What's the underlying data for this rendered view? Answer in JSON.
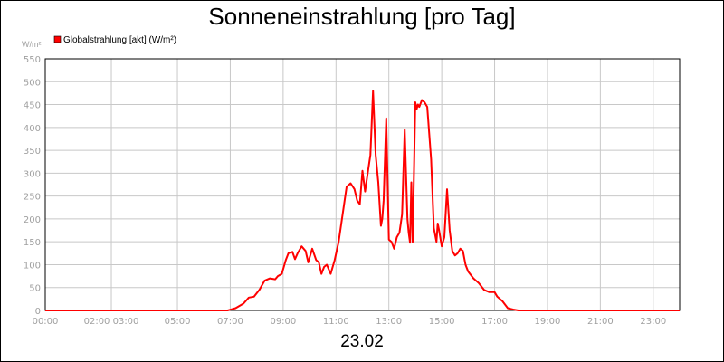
{
  "chart_data": {
    "type": "line",
    "title": "Sonneneinstrahlung [pro Tag]",
    "ylabel": "W/m²",
    "xlabel": "",
    "date_label": "23.02",
    "ylim": [
      0,
      550
    ],
    "yticks": [
      0,
      50,
      100,
      150,
      200,
      250,
      300,
      350,
      400,
      450,
      500,
      550
    ],
    "xlim_hours": [
      0,
      24
    ],
    "xticks": [
      {
        "hour": 0,
        "label": "00:00"
      },
      {
        "hour": 2.5,
        "label": "02:00 03:00"
      },
      {
        "hour": 5,
        "label": "05:00"
      },
      {
        "hour": 7,
        "label": "07:00"
      },
      {
        "hour": 9,
        "label": "09:00"
      },
      {
        "hour": 11,
        "label": "11:00"
      },
      {
        "hour": 13,
        "label": "13:00"
      },
      {
        "hour": 15,
        "label": "15:00"
      },
      {
        "hour": 17,
        "label": "17:00"
      },
      {
        "hour": 19,
        "label": "19:00"
      },
      {
        "hour": 21,
        "label": "21:00"
      },
      {
        "hour": 23,
        "label": "23:00"
      }
    ],
    "grid": true,
    "legend_position": "top-left",
    "series": [
      {
        "name": "Globalstrahlung [akt] (W/m²)",
        "color": "#ff0000",
        "x": [
          0,
          6.9,
          7.2,
          7.5,
          7.7,
          7.9,
          8.1,
          8.3,
          8.5,
          8.7,
          8.8,
          8.95,
          9.1,
          9.2,
          9.35,
          9.45,
          9.55,
          9.7,
          9.85,
          9.95,
          10.1,
          10.25,
          10.35,
          10.45,
          10.55,
          10.65,
          10.8,
          10.95,
          11.1,
          11.25,
          11.4,
          11.55,
          11.7,
          11.8,
          11.9,
          12.0,
          12.1,
          12.2,
          12.3,
          12.4,
          12.5,
          12.6,
          12.7,
          12.75,
          12.8,
          12.9,
          13.0,
          13.1,
          13.2,
          13.3,
          13.4,
          13.5,
          13.6,
          13.7,
          13.75,
          13.8,
          13.85,
          13.9,
          14.0,
          14.05,
          14.1,
          14.15,
          14.25,
          14.35,
          14.45,
          14.6,
          14.7,
          14.8,
          14.85,
          14.9,
          15.0,
          15.1,
          15.2,
          15.3,
          15.4,
          15.5,
          15.6,
          15.7,
          15.8,
          15.9,
          16.0,
          16.2,
          16.4,
          16.6,
          16.8,
          17.0,
          17.1,
          17.3,
          17.5,
          17.7,
          17.9,
          18.2,
          24
        ],
        "y": [
          0,
          0,
          5,
          15,
          28,
          30,
          45,
          65,
          70,
          68,
          75,
          80,
          110,
          125,
          128,
          112,
          125,
          140,
          130,
          105,
          135,
          110,
          105,
          80,
          95,
          100,
          80,
          110,
          150,
          210,
          270,
          278,
          265,
          240,
          232,
          305,
          260,
          300,
          340,
          480,
          340,
          280,
          185,
          200,
          240,
          420,
          155,
          150,
          135,
          160,
          170,
          210,
          395,
          200,
          170,
          148,
          280,
          150,
          455,
          440,
          450,
          445,
          460,
          455,
          445,
          330,
          180,
          150,
          190,
          175,
          140,
          160,
          265,
          175,
          130,
          120,
          125,
          135,
          130,
          100,
          85,
          70,
          60,
          45,
          40,
          40,
          30,
          20,
          5,
          2,
          0,
          0,
          0
        ]
      }
    ]
  }
}
